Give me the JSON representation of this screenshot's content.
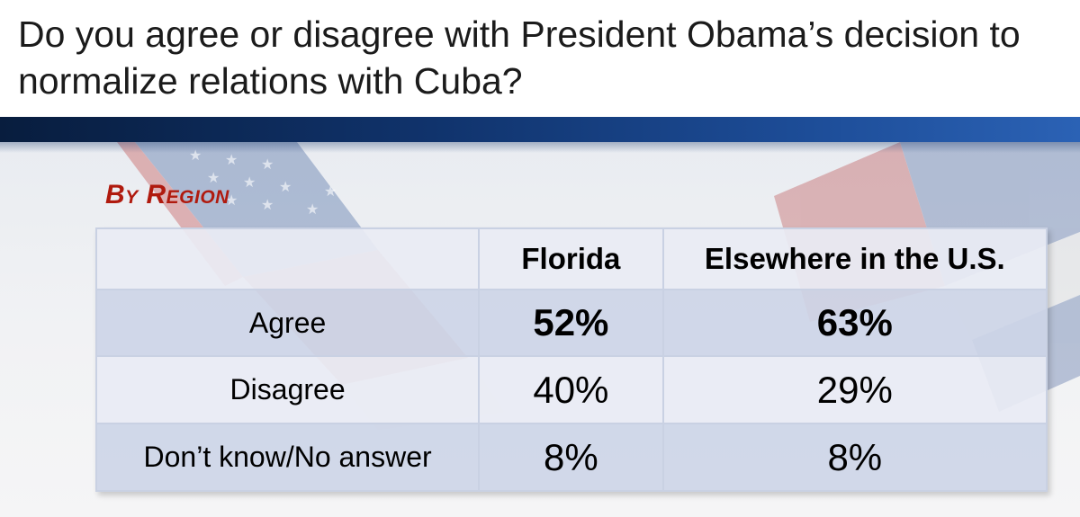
{
  "title": "Do you agree or disagree with President Obama’s decision to normalize relations with Cuba?",
  "subtitle": "By Region",
  "table": {
    "columns": [
      "",
      "Florida",
      "Elsewhere in the U.S."
    ],
    "rows": [
      {
        "label": "Agree",
        "florida": "52%",
        "elsewhere": "63%"
      },
      {
        "label": "Disagree",
        "florida": "40%",
        "elsewhere": "29%"
      },
      {
        "label": "Don’t know/No answer",
        "florida": "8%",
        "elsewhere": "8%"
      }
    ]
  },
  "colors": {
    "accent_red": "#b01a0e",
    "band_dark": "#081d3e",
    "band_light": "#2b62b5",
    "row_dark": "#cdd5e7",
    "row_light": "#e9ecf4"
  }
}
